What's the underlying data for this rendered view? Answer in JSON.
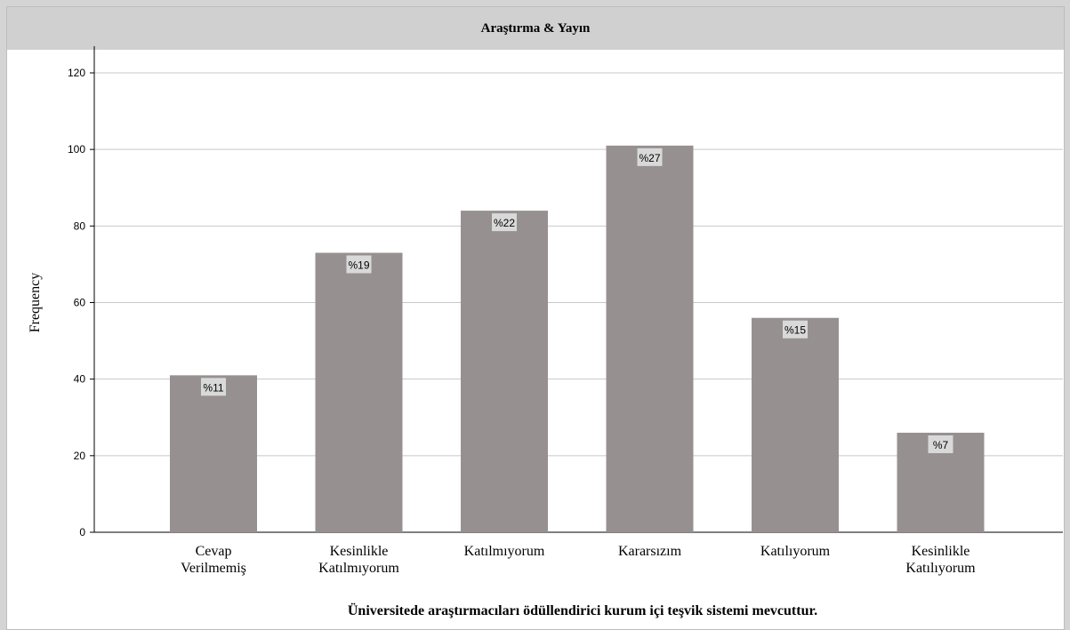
{
  "chart_data": {
    "type": "bar",
    "title": "Araştırma & Yayın",
    "xlabel": "Üniversitede araştırmacıları ödüllendirici kurum içi teşvik sistemi mevcuttur.",
    "ylabel": "Frequency",
    "ylim": [
      0,
      120
    ],
    "yticks": [
      0,
      20,
      40,
      60,
      80,
      100,
      120
    ],
    "grid": true,
    "categories": [
      [
        "Cevap",
        "Verilmemiş"
      ],
      [
        "Kesinlikle",
        "Katılmıyorum"
      ],
      [
        "Katılmıyorum"
      ],
      [
        "Kararsızım"
      ],
      [
        "Katılıyorum"
      ],
      [
        "Kesinlikle",
        "Katılıyorum"
      ]
    ],
    "values": [
      41,
      73,
      84,
      101,
      56,
      26
    ],
    "data_labels": [
      "%11",
      "%19",
      "%22",
      "%27",
      "%15",
      "%7"
    ],
    "colors": {
      "bar": "#969190",
      "grid": "#c8c8c8",
      "title_bar": "#d0d0d0",
      "label_box": "#d9d9d9"
    }
  }
}
